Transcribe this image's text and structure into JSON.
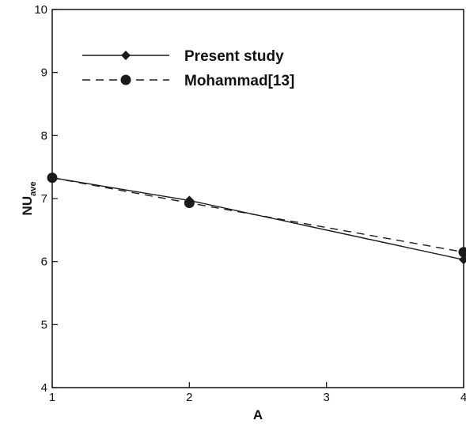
{
  "chart_data": {
    "type": "line",
    "x_label": "A",
    "y_label_main": "NU",
    "y_label_sub": "ave",
    "xlim": [
      1,
      4
    ],
    "ylim": [
      4,
      10
    ],
    "x_ticks": [
      "1",
      "2",
      "3",
      "4"
    ],
    "y_ticks": [
      "4",
      "5",
      "6",
      "7",
      "8",
      "9",
      "10"
    ],
    "grid": false,
    "legend_position": "top-left",
    "series": [
      {
        "name": "Present study",
        "style": "solid",
        "marker": "diamond",
        "color": "#1a1a1a",
        "x": [
          1,
          2,
          4
        ],
        "y": [
          7.33,
          6.97,
          6.03
        ]
      },
      {
        "name": "Mohammad[13]",
        "style": "dashed",
        "marker": "circle",
        "color": "#1a1a1a",
        "x": [
          1,
          2,
          4
        ],
        "y": [
          7.33,
          6.93,
          6.15
        ]
      }
    ]
  }
}
